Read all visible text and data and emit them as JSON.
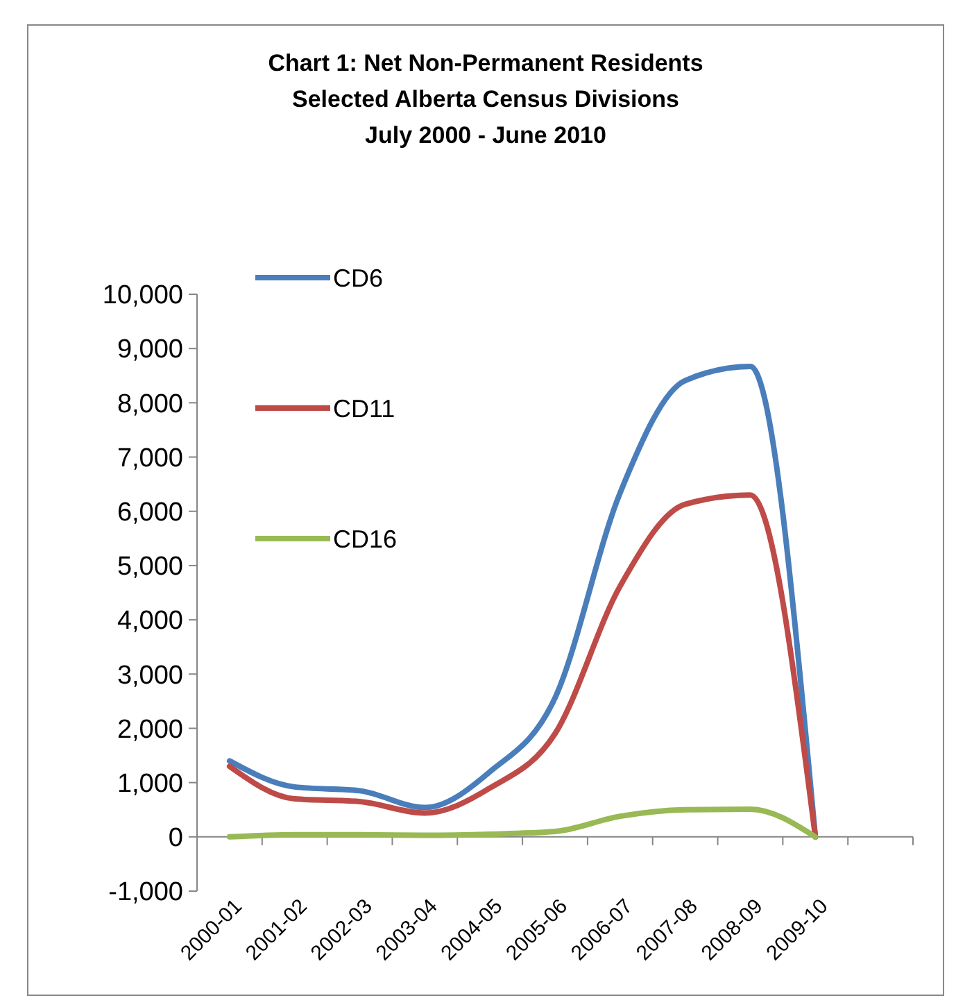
{
  "chart_data": {
    "type": "line",
    "title": "Chart 1:  Net  Non-Permanent Residents\nSelected Alberta Census Divisions\nJuly 2000 - June 2010",
    "categories": [
      "2000-01",
      "2001-02",
      "2002-03",
      "2003-04",
      "2004-05",
      "2005-06",
      "2006-07",
      "2007-08",
      "2008-09",
      "2009-10",
      null
    ],
    "series": [
      {
        "name": "CD6",
        "color": "#4a7ebb",
        "values": [
          1400,
          920,
          850,
          540,
          1200,
          2560,
          6340,
          8410,
          8670,
          0,
          null
        ]
      },
      {
        "name": "CD11",
        "color": "#be4b48",
        "values": [
          1300,
          700,
          650,
          440,
          900,
          1900,
          4620,
          6130,
          6300,
          0,
          null
        ]
      },
      {
        "name": "CD16",
        "color": "#98b954",
        "values": [
          0,
          40,
          40,
          30,
          50,
          100,
          380,
          500,
          510,
          0,
          null
        ]
      }
    ],
    "ylim": [
      -1000,
      10000
    ],
    "yticks": [
      {
        "value": -1000,
        "label": "-1,000"
      },
      0,
      {
        "value": 1000,
        "label": "1,000"
      },
      {
        "value": 2000,
        "label": "2,000"
      },
      {
        "value": 3000,
        "label": "3,000"
      },
      {
        "value": 4000,
        "label": "4,000"
      },
      {
        "value": 5000,
        "label": "5,000"
      },
      {
        "value": 6000,
        "label": "6,000"
      },
      {
        "value": 7000,
        "label": "7,000"
      },
      {
        "value": 8000,
        "label": "8,000"
      },
      {
        "value": 9000,
        "label": "9,000"
      },
      {
        "value": 10000,
        "label": "10,000"
      }
    ],
    "legend": "top left",
    "marker": "none",
    "line_style": "solid"
  }
}
